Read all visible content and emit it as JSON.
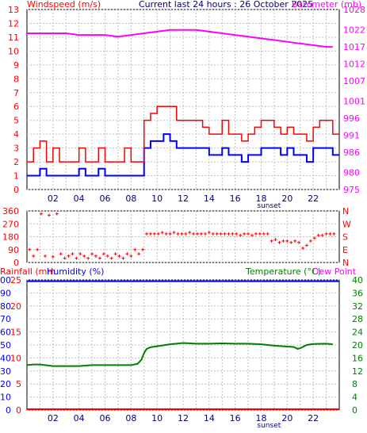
{
  "header": {
    "left_label": "Windspeed (m/s)",
    "center_label": "Current last 24 hours : 26 October 2025",
    "right_label": "Barometer (mb)"
  },
  "colors": {
    "wind": "#ff0000",
    "gust_fill": "#0000ff",
    "barometer": "#ff00ff",
    "direction": "#ff0000",
    "rain": "#ff0000",
    "humidity": "#0000ff",
    "temperature": "#008000",
    "dewpoint": "#ff00ff",
    "grid": "#c0c0c0",
    "tick_text": "#ff0000"
  },
  "chart_data": [
    {
      "type": "line",
      "name": "wind-barometer",
      "x_tick_labels": [
        "02",
        "04",
        "06",
        "08",
        "10",
        "12",
        "14",
        "16",
        "18",
        "20",
        "22"
      ],
      "x_annotation": "sunset",
      "y_left": {
        "label": "Windspeed (m/s)",
        "ticks": [
          0,
          1,
          2,
          3,
          4,
          5,
          6,
          7,
          8,
          9,
          10,
          11,
          12,
          13
        ],
        "range": [
          0,
          13
        ]
      },
      "y_right": {
        "label": "Barometer (mb)",
        "ticks": [
          975,
          980,
          986,
          991,
          996,
          1001,
          1007,
          1012,
          1017,
          1022,
          1028
        ],
        "range": [
          975,
          1028
        ]
      },
      "x_range_hours": [
        0,
        24
      ],
      "series": [
        {
          "name": "Windspeed",
          "axis": "left",
          "x": [
            0,
            0.5,
            1,
            1.5,
            2,
            2.5,
            3,
            3.5,
            4,
            4.5,
            5,
            5.5,
            6,
            6.5,
            7,
            7.5,
            8,
            8.5,
            9,
            9.5,
            10,
            10.5,
            11,
            11.5,
            12,
            12.5,
            13,
            13.5,
            14,
            14.5,
            15,
            15.5,
            16,
            16.5,
            17,
            17.5,
            18,
            18.5,
            19,
            19.5,
            20,
            20.5,
            21,
            21.5,
            22,
            22.5,
            23,
            23.5
          ],
          "values": [
            2,
            3,
            3.5,
            2,
            3,
            2,
            2,
            2,
            3,
            2,
            2,
            3,
            2,
            2,
            2,
            3,
            2,
            2,
            5,
            5.5,
            6,
            6,
            6,
            5,
            5,
            5,
            5,
            4.5,
            4,
            4,
            5,
            4,
            4,
            3.5,
            4,
            4.5,
            5,
            5,
            4.5,
            4,
            4.5,
            4,
            4,
            3.5,
            4.5,
            5,
            5,
            4
          ]
        },
        {
          "name": "Wind Min",
          "axis": "left",
          "x": [
            0,
            0.5,
            1,
            1.5,
            2,
            2.5,
            3,
            3.5,
            4,
            4.5,
            5,
            5.5,
            6,
            6.5,
            7,
            7.5,
            8,
            8.5,
            9,
            9.5,
            10,
            10.5,
            11,
            11.5,
            12,
            12.5,
            13,
            13.5,
            14,
            14.5,
            15,
            15.5,
            16,
            16.5,
            17,
            17.5,
            18,
            18.5,
            19,
            19.5,
            20,
            20.5,
            21,
            21.5,
            22,
            22.5,
            23,
            23.5
          ],
          "values": [
            1,
            1,
            1.5,
            1,
            1,
            1,
            1,
            1,
            1.5,
            1,
            1,
            1.5,
            1,
            1,
            1,
            1,
            1,
            1,
            3,
            3.5,
            3.5,
            4,
            3.5,
            3,
            3,
            3,
            3,
            3,
            2.5,
            2.5,
            3,
            2.5,
            2.5,
            2,
            2.5,
            2.5,
            3,
            3,
            3,
            2.5,
            3,
            2.5,
            2.5,
            2,
            3,
            3,
            3,
            2.5
          ]
        },
        {
          "name": "Barometer",
          "axis": "right",
          "x": [
            0,
            1,
            2,
            3,
            4,
            5,
            6,
            7,
            8,
            9,
            10,
            11,
            12,
            13,
            14,
            15,
            16,
            17,
            18,
            19,
            20,
            21,
            22,
            23,
            23.5
          ],
          "values": [
            1021,
            1021,
            1021,
            1021,
            1020.5,
            1020.5,
            1020.5,
            1020,
            1020.5,
            1021,
            1021.5,
            1022,
            1022,
            1022,
            1021.5,
            1021,
            1020.5,
            1020,
            1019.5,
            1019,
            1018.5,
            1018,
            1017.5,
            1017,
            1017
          ]
        }
      ]
    },
    {
      "type": "scatter",
      "name": "wind-direction",
      "y_left": {
        "ticks": [
          0,
          90,
          180,
          270,
          360
        ],
        "range": [
          0,
          360
        ]
      },
      "y_right": {
        "ticks": [
          "N",
          "E",
          "S",
          "W",
          "N"
        ]
      },
      "x_range_hours": [
        0,
        24
      ],
      "series": [
        {
          "name": "Direction",
          "x": [
            0.2,
            0.5,
            0.8,
            1.1,
            1.4,
            1.7,
            2.0,
            2.3,
            2.6,
            2.9,
            3.2,
            3.5,
            3.8,
            4.1,
            4.4,
            4.7,
            5.0,
            5.3,
            5.6,
            5.9,
            6.2,
            6.5,
            6.8,
            7.1,
            7.4,
            7.7,
            8.0,
            8.3,
            8.6,
            8.9,
            9.2,
            9.5,
            9.8,
            10.1,
            10.4,
            10.7,
            11.0,
            11.3,
            11.6,
            11.9,
            12.2,
            12.5,
            12.8,
            13.1,
            13.4,
            13.7,
            14.0,
            14.3,
            14.6,
            14.9,
            15.2,
            15.5,
            15.8,
            16.1,
            16.4,
            16.7,
            17.0,
            17.3,
            17.6,
            17.9,
            18.2,
            18.5,
            18.8,
            19.1,
            19.4,
            19.7,
            20.0,
            20.3,
            20.6,
            20.9,
            21.2,
            21.5,
            21.8,
            22.1,
            22.4,
            22.7,
            23.0,
            23.3,
            23.6
          ],
          "values": [
            90,
            45,
            90,
            340,
            45,
            330,
            40,
            340,
            60,
            30,
            45,
            60,
            30,
            60,
            45,
            30,
            60,
            45,
            30,
            60,
            45,
            30,
            60,
            45,
            30,
            60,
            45,
            90,
            60,
            90,
            200,
            200,
            200,
            200,
            210,
            200,
            200,
            210,
            200,
            200,
            200,
            210,
            200,
            200,
            200,
            200,
            210,
            200,
            200,
            200,
            200,
            200,
            200,
            200,
            190,
            200,
            200,
            190,
            200,
            200,
            200,
            200,
            150,
            160,
            140,
            150,
            150,
            140,
            150,
            140,
            100,
            120,
            150,
            170,
            190,
            190,
            200,
            200,
            200
          ]
        }
      ]
    },
    {
      "type": "line",
      "name": "rain-humidity-temperature",
      "header_left": [
        "Rainfall (mm",
        "Humidity (%)"
      ],
      "header_right": [
        "Temperature (°C)",
        "Dew Point"
      ],
      "x_tick_labels": [
        "02",
        "04",
        "06",
        "08",
        "10",
        "12",
        "14",
        "16",
        "18",
        "20",
        "22"
      ],
      "x_annotation": "sunset",
      "y_humidity": {
        "ticks": [
          0,
          10,
          20,
          30,
          40,
          50,
          60,
          70,
          80,
          90,
          100
        ],
        "range": [
          0,
          100
        ]
      },
      "y_rainfall": {
        "ticks": [
          0,
          5,
          10,
          15,
          20,
          25
        ],
        "range": [
          0,
          25
        ]
      },
      "y_right": {
        "label": "Temperature (°C)",
        "ticks": [
          0,
          4,
          8,
          12,
          16,
          20,
          24,
          28,
          32,
          36,
          40
        ],
        "range": [
          0,
          40
        ]
      },
      "x_range_hours": [
        0,
        24
      ],
      "series": [
        {
          "name": "Humidity",
          "axis": "left",
          "x": [
            0,
            24
          ],
          "values": [
            99,
            99
          ]
        },
        {
          "name": "Rainfall",
          "axis": "left",
          "x": [
            0,
            24
          ],
          "values": [
            0,
            0
          ]
        },
        {
          "name": "Temperature",
          "axis": "right",
          "x": [
            0,
            0.5,
            1,
            2,
            3,
            4,
            5,
            6,
            7,
            7.5,
            8,
            8.5,
            8.8,
            9,
            9.2,
            9.5,
            10,
            11,
            12,
            13,
            14,
            15,
            16,
            17,
            18,
            19,
            20,
            20.5,
            20.8,
            21,
            21.5,
            22,
            23,
            23.5
          ],
          "values": [
            13.8,
            14,
            14,
            13.5,
            13.5,
            13.5,
            13.8,
            13.8,
            13.8,
            13.8,
            13.8,
            14.2,
            15.5,
            17.5,
            18.8,
            19.3,
            19.6,
            20.2,
            20.6,
            20.4,
            20.4,
            20.5,
            20.4,
            20.4,
            20.2,
            19.8,
            19.5,
            19.4,
            18.8,
            19.0,
            20.0,
            20.3,
            20.4,
            20.2
          ]
        }
      ]
    }
  ]
}
